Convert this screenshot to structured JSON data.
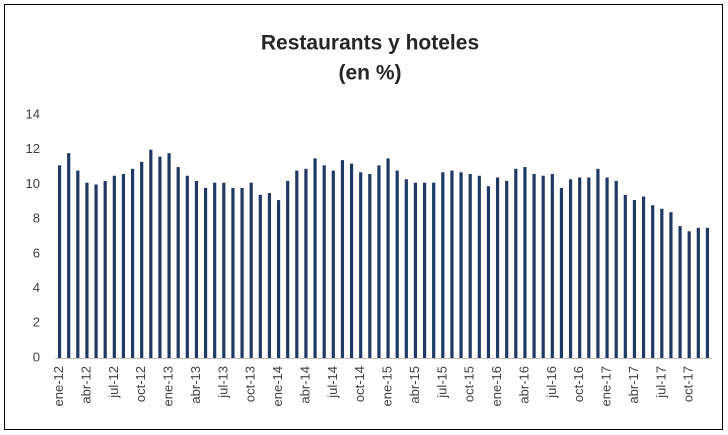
{
  "chart_data": {
    "type": "bar",
    "title": "Restaurants y hoteles",
    "subtitle": "(en %)",
    "categories": [
      "ene-12",
      null,
      null,
      "abr-12",
      null,
      null,
      "jul-12",
      null,
      null,
      "oct-12",
      null,
      null,
      "ene-13",
      null,
      null,
      "abr-13",
      null,
      null,
      "jul-13",
      null,
      null,
      "oct-13",
      null,
      null,
      "ene-14",
      null,
      null,
      "abr-14",
      null,
      null,
      "jul-14",
      null,
      null,
      "oct-14",
      null,
      null,
      "ene-15",
      null,
      null,
      "abr-15",
      null,
      null,
      "jul-15",
      null,
      null,
      "oct-15",
      null,
      null,
      "ene-16",
      null,
      null,
      "abr-16",
      null,
      null,
      "jul-16",
      null,
      null,
      "oct-16",
      null,
      null,
      "ene-17",
      null,
      null,
      "abr-17",
      null,
      null,
      "jul-17",
      null,
      null,
      "oct-17",
      null,
      null
    ],
    "values": [
      11.1,
      11.8,
      10.8,
      10.1,
      10.0,
      10.2,
      10.5,
      10.6,
      10.9,
      11.3,
      12.0,
      11.6,
      11.8,
      11.0,
      10.5,
      10.2,
      9.8,
      10.1,
      10.1,
      9.8,
      9.8,
      10.1,
      9.4,
      9.5,
      9.1,
      10.2,
      10.8,
      10.9,
      11.5,
      11.1,
      10.8,
      11.4,
      11.2,
      10.7,
      10.6,
      11.1,
      11.5,
      10.8,
      10.3,
      10.1,
      10.1,
      10.1,
      10.7,
      10.8,
      10.7,
      10.6,
      10.5,
      9.9,
      10.4,
      10.2,
      10.9,
      11.0,
      10.6,
      10.5,
      10.6,
      9.8,
      10.3,
      10.4,
      10.4,
      10.9,
      10.4,
      10.2,
      9.4,
      9.1,
      9.3,
      8.8,
      8.6,
      8.4,
      7.6,
      7.3,
      7.5,
      7.5
    ],
    "color": "#1f3864",
    "ylim": [
      0,
      14
    ],
    "yticks": [
      0,
      2,
      4,
      6,
      8,
      10,
      12,
      14
    ],
    "grid": false
  }
}
